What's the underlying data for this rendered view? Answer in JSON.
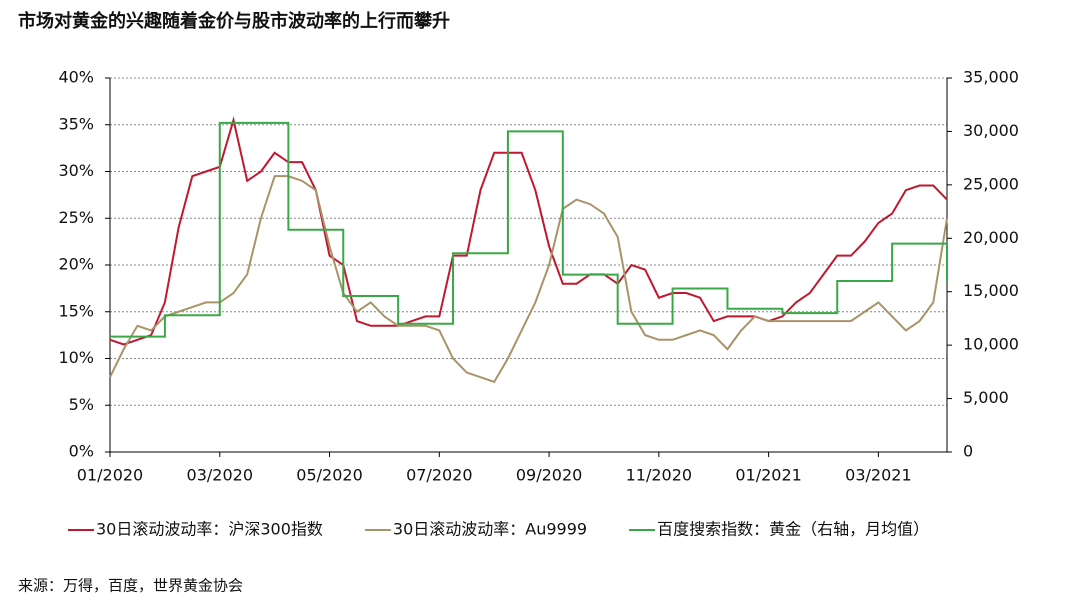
{
  "chart_data": {
    "type": "line",
    "title": "市场对黄金的兴趣随着金价与股市波动率的上行而攀升",
    "source": "来源：万得，百度，世界黄金协会",
    "categories": [
      "01/2020",
      null,
      null,
      null,
      null,
      null,
      null,
      null,
      "03/2020",
      null,
      null,
      null,
      null,
      null,
      null,
      null,
      "05/2020",
      null,
      null,
      null,
      null,
      null,
      null,
      null,
      "07/2020",
      null,
      null,
      null,
      null,
      null,
      null,
      null,
      "09/2020",
      null,
      null,
      null,
      null,
      null,
      null,
      null,
      "11/2020",
      null,
      null,
      null,
      null,
      null,
      null,
      null,
      "01/2021",
      null,
      null,
      null,
      null,
      null,
      null,
      null,
      "03/2021",
      null,
      null,
      null,
      null,
      null
    ],
    "series": [
      {
        "name": "30日滚动波动率：沪深300指数",
        "color": "#c0182f",
        "axis": "y",
        "values": [
          12,
          11.5,
          12,
          12.5,
          16,
          24,
          29.5,
          30,
          30.5,
          35.5,
          29,
          30,
          32,
          31,
          31,
          28,
          21,
          20,
          14,
          13.5,
          13.5,
          13.5,
          14,
          14.5,
          14.5,
          21,
          21,
          28,
          32,
          32,
          32,
          28,
          22,
          18,
          18,
          19,
          19,
          18,
          20,
          19.5,
          16.5,
          17,
          17,
          16.5,
          14,
          14.5,
          14.5,
          14.5,
          14,
          14.5,
          16,
          17,
          19,
          21,
          21,
          22.5,
          24.5,
          25.5,
          28,
          28.5,
          28.5,
          27
        ]
      },
      {
        "name": "30日滚动波动率：Au9999",
        "color": "#a89468",
        "axis": "y",
        "values": [
          8,
          11,
          13.5,
          13,
          14.5,
          15,
          15.5,
          16,
          16,
          17,
          19,
          25,
          29.5,
          29.5,
          29,
          28,
          22,
          17,
          15,
          16,
          14.5,
          13.5,
          13.5,
          13.5,
          13,
          10,
          8.5,
          8,
          7.5,
          10,
          13,
          16,
          20,
          26,
          27,
          26.5,
          25.5,
          23,
          15,
          12.5,
          12,
          12,
          12.5,
          13,
          12.5,
          11,
          13,
          14.5,
          14,
          14,
          14,
          14,
          14,
          14,
          14,
          15,
          16,
          14.5,
          13,
          14,
          16,
          25
        ]
      },
      {
        "name": "百度搜索指数：黄金（右轴，月均值）",
        "color": "#3aa846",
        "axis": "y2",
        "step": true,
        "values": [
          10800,
          10800,
          10800,
          10800,
          12800,
          12800,
          12800,
          12800,
          30800,
          30800,
          30800,
          30800,
          30800,
          20800,
          20800,
          20800,
          20800,
          14600,
          14600,
          14600,
          14600,
          12000,
          12000,
          12000,
          12000,
          18600,
          18600,
          18600,
          18600,
          30000,
          30000,
          30000,
          30000,
          16600,
          16600,
          16600,
          16600,
          12000,
          12000,
          12000,
          12000,
          15300,
          15300,
          15300,
          15300,
          13400,
          13400,
          13400,
          13400,
          13000,
          13000,
          13000,
          13000,
          16000,
          16000,
          16000,
          16000,
          19500,
          19500,
          19500,
          19500,
          16000
        ]
      }
    ],
    "ylim": [
      0,
      40
    ],
    "yticks": [
      {
        "value": 0,
        "label": "0%"
      },
      {
        "value": 5,
        "label": "5%"
      },
      {
        "value": 10,
        "label": "10%"
      },
      {
        "value": 15,
        "label": "15%"
      },
      {
        "value": 20,
        "label": "20%"
      },
      {
        "value": 25,
        "label": "25%"
      },
      {
        "value": 30,
        "label": "30%"
      },
      {
        "value": 35,
        "label": "35%"
      },
      {
        "value": 40,
        "label": "40%"
      }
    ],
    "y2lim": [
      0,
      35000
    ],
    "y2ticks": [
      0,
      {
        "value": 5000,
        "label": "5,000"
      },
      {
        "value": 10000,
        "label": "10,000"
      },
      {
        "value": 15000,
        "label": "15,000"
      },
      {
        "value": 20000,
        "label": "20,000"
      },
      {
        "value": 25000,
        "label": "25,000"
      },
      {
        "value": 30000,
        "label": "30,000"
      },
      {
        "value": 35000,
        "label": "35,000"
      }
    ],
    "grid": true,
    "legend": "bottom"
  }
}
